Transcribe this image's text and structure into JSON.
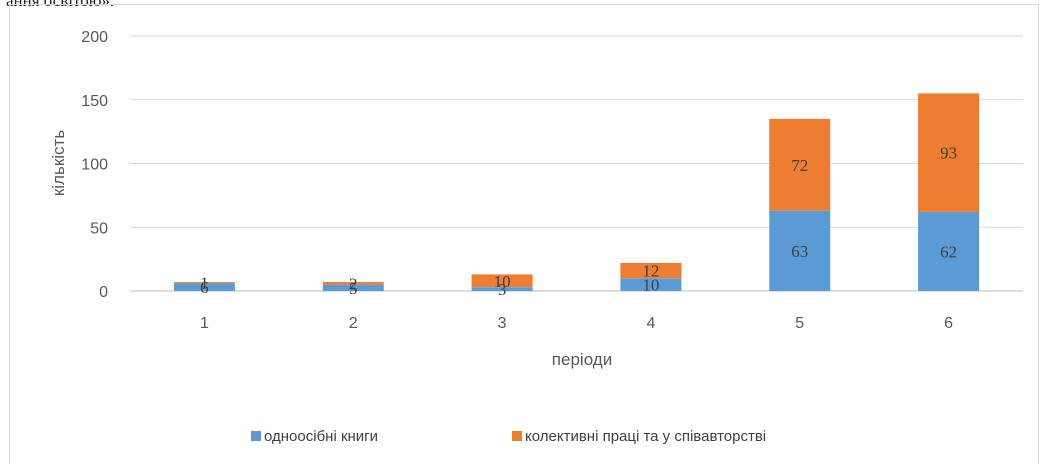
{
  "header_fragment": "ання освітою».",
  "chart_data": {
    "type": "bar",
    "stacked": true,
    "categories": [
      "1",
      "2",
      "3",
      "4",
      "5",
      "6"
    ],
    "series": [
      {
        "name": "одноосібні книги",
        "values": [
          6,
          5,
          3,
          10,
          63,
          62
        ],
        "color": "#5b9bd5"
      },
      {
        "name": "колективні праці та у співавторстві",
        "values": [
          1,
          2,
          10,
          12,
          72,
          93
        ],
        "color": "#ed7d31"
      }
    ],
    "title": "",
    "xlabel": "періоди",
    "ylabel": "кількість",
    "ylim": [
      0,
      200
    ],
    "yticks": [
      0,
      50,
      100,
      150,
      200
    ],
    "grid": true,
    "legend": "bottom"
  }
}
